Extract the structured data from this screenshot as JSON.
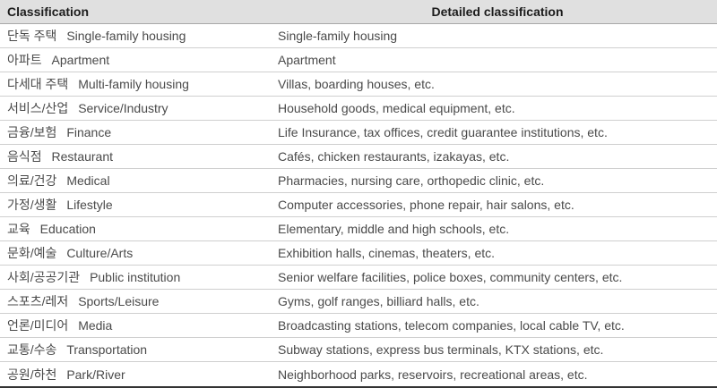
{
  "table": {
    "columns": [
      {
        "label": "Classification"
      },
      {
        "label": "Detailed classification"
      }
    ],
    "rows": [
      {
        "korean": "단독 주택",
        "english": "Single-family housing",
        "detail": "Single-family housing"
      },
      {
        "korean": "아파트",
        "english": "Apartment",
        "detail": "Apartment"
      },
      {
        "korean": "다세대 주택",
        "english": "Multi-family housing",
        "detail": "Villas, boarding houses, etc."
      },
      {
        "korean": "서비스/산업",
        "english": "Service/Industry",
        "detail": "Household goods, medical equipment, etc."
      },
      {
        "korean": "금융/보험",
        "english": "Finance",
        "detail": "Life Insurance, tax offices, credit guarantee institutions, etc."
      },
      {
        "korean": "음식점",
        "english": "Restaurant",
        "detail": "Cafés, chicken restaurants, izakayas, etc."
      },
      {
        "korean": "의료/건강",
        "english": "Medical",
        "detail": "Pharmacies, nursing care, orthopedic clinic, etc."
      },
      {
        "korean": "가정/생활",
        "english": "Lifestyle",
        "detail": "Computer accessories, phone repair, hair salons, etc."
      },
      {
        "korean": "교육",
        "english": "Education",
        "detail": "Elementary, middle and high schools, etc."
      },
      {
        "korean": "문화/예술",
        "english": "Culture/Arts",
        "detail": "Exhibition halls, cinemas, theaters, etc."
      },
      {
        "korean": "사회/공공기관",
        "english": "Public institution",
        "detail": "Senior welfare facilities, police boxes, community centers, etc."
      },
      {
        "korean": "스포츠/레저",
        "english": "Sports/Leisure",
        "detail": "Gyms, golf ranges, billiard halls, etc."
      },
      {
        "korean": "언론/미디어",
        "english": "Media",
        "detail": "Broadcasting stations, telecom companies, local cable TV, etc."
      },
      {
        "korean": "교통/수송",
        "english": "Transportation",
        "detail": "Subway stations, express bus terminals, KTX stations, etc."
      },
      {
        "korean": "공원/하천",
        "english": "Park/River",
        "detail": "Neighborhood parks, reservoirs, recreational areas, etc."
      }
    ]
  },
  "colors": {
    "header_background": "#e0e0e0",
    "header_text": "#1c1c1c",
    "body_text": "#4a4a4a",
    "row_separator": "#cfcfcf",
    "header_rule": "#a8a8a8",
    "bottom_rule": "#333333"
  }
}
